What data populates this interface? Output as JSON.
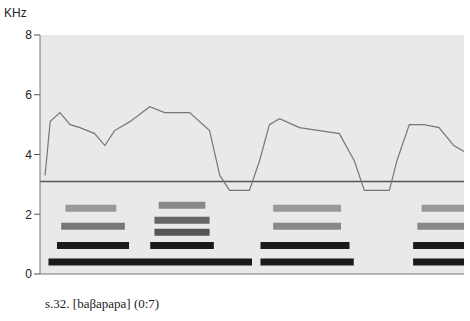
{
  "chart_data": {
    "type": "spectrogram",
    "caption": "s.32. [baβapapa] (0:7)",
    "ylabel": "KHz",
    "xlim": [
      0,
      100
    ],
    "ylim": [
      0,
      8
    ],
    "yticks": [
      0,
      2,
      4,
      6,
      8
    ],
    "tick_labels": "y",
    "grid": false,
    "reference_line": 3.1,
    "contour": {
      "color": "#777777",
      "x": [
        1.2,
        2.4,
        4.7,
        7.1,
        9.4,
        12.9,
        15.3,
        17.6,
        21.2,
        25.9,
        29.4,
        35.3,
        40,
        42.4,
        44.7,
        49.4,
        51.8,
        54.1,
        56.5,
        61.2,
        65.9,
        70.6,
        74.1,
        76.5,
        82.4,
        84.2,
        87.1,
        90.6,
        94.1,
        97.6,
        100
      ],
      "values": [
        3.3,
        5.1,
        5.4,
        5.0,
        4.9,
        4.7,
        4.3,
        4.8,
        5.1,
        5.6,
        5.4,
        5.4,
        4.8,
        3.3,
        2.8,
        2.8,
        3.8,
        5.0,
        5.2,
        4.9,
        4.8,
        4.7,
        3.8,
        2.8,
        2.8,
        3.8,
        5.0,
        5.0,
        4.9,
        4.3,
        4.1
      ]
    },
    "formants": [
      {
        "x": [
          2,
          50
        ],
        "y": 0.4,
        "color": "#1a1a1a"
      },
      {
        "x": [
          4,
          21
        ],
        "y": 0.95,
        "color": "#1a1a1a"
      },
      {
        "x": [
          5,
          20
        ],
        "y": 1.6,
        "color": "#777777"
      },
      {
        "x": [
          6,
          18
        ],
        "y": 2.2,
        "color": "#999999"
      },
      {
        "x": [
          26,
          41
        ],
        "y": 0.95,
        "color": "#1a1a1a"
      },
      {
        "x": [
          27,
          40
        ],
        "y": 1.4,
        "color": "#555555"
      },
      {
        "x": [
          27,
          40
        ],
        "y": 1.8,
        "color": "#666666"
      },
      {
        "x": [
          28,
          39
        ],
        "y": 2.3,
        "color": "#888888"
      },
      {
        "x": [
          52,
          74
        ],
        "y": 0.4,
        "color": "#1a1a1a"
      },
      {
        "x": [
          52,
          73
        ],
        "y": 0.95,
        "color": "#1a1a1a"
      },
      {
        "x": [
          55,
          71
        ],
        "y": 1.6,
        "color": "#888888"
      },
      {
        "x": [
          55,
          71
        ],
        "y": 2.2,
        "color": "#999999"
      },
      {
        "x": [
          88,
          100
        ],
        "y": 0.4,
        "color": "#1a1a1a"
      },
      {
        "x": [
          88,
          100
        ],
        "y": 0.95,
        "color": "#1a1a1a"
      },
      {
        "x": [
          89,
          100
        ],
        "y": 1.6,
        "color": "#888888"
      },
      {
        "x": [
          90,
          100
        ],
        "y": 2.2,
        "color": "#999999"
      }
    ]
  }
}
